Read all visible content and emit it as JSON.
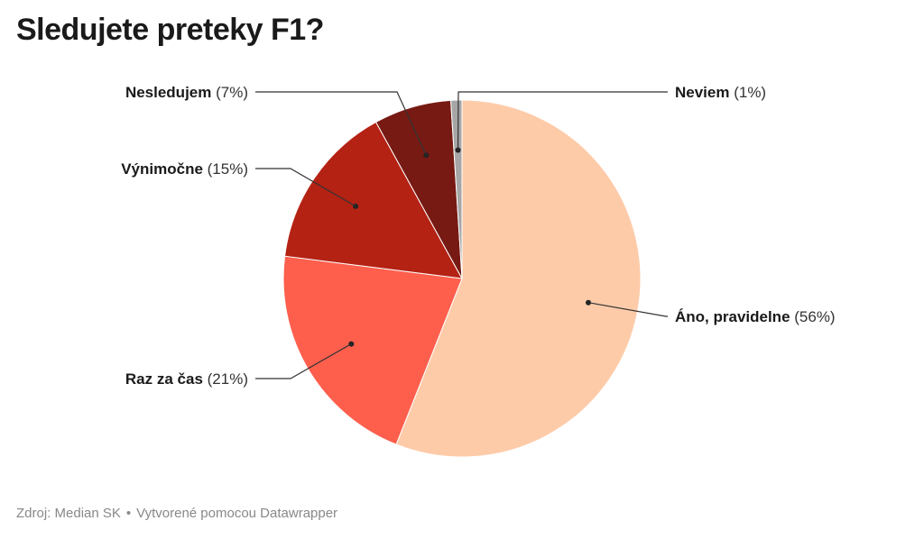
{
  "title": "Sledujete preteky F1?",
  "footer": {
    "source": "Zdroj: Median SK",
    "credit": "Vytvorené pomocou Datawrapper"
  },
  "chart_data": {
    "type": "pie",
    "title": "Sledujete preteky F1?",
    "slices": [
      {
        "label": "Áno, pravidelne",
        "value": 56,
        "display": "(56%)",
        "color": "#fecba9"
      },
      {
        "label": "Raz za čas",
        "value": 21,
        "display": "(21%)",
        "color": "#fe5f4d"
      },
      {
        "label": "Výnimočne",
        "value": 15,
        "display": "(15%)",
        "color": "#b42214"
      },
      {
        "label": "Nesledujem",
        "value": 7,
        "display": "(7%)",
        "color": "#761a13"
      },
      {
        "label": "Neviem",
        "value": 1,
        "display": "(1%)",
        "color": "#a6a6a6"
      }
    ]
  }
}
